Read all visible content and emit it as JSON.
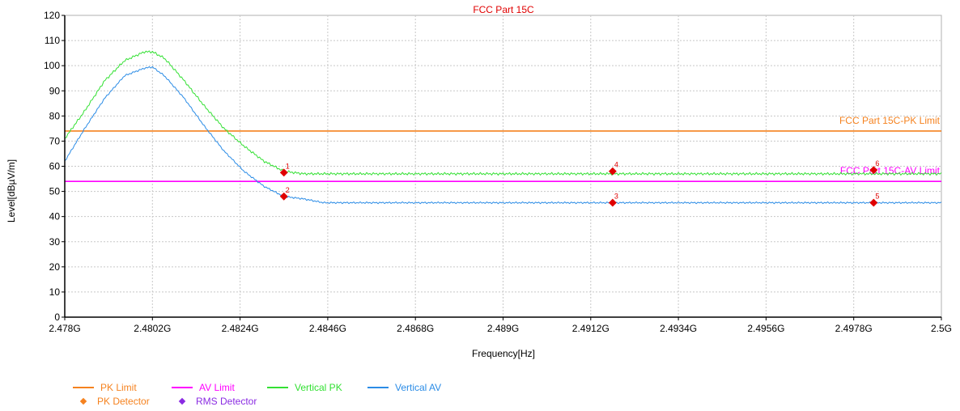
{
  "chart_data": {
    "type": "line",
    "title": "FCC Part 15C",
    "xlabel": "Frequency[Hz]",
    "ylabel": "Level[dBµV/m]",
    "xlim": [
      2.478,
      2.5
    ],
    "ylim": [
      0,
      120
    ],
    "x_ticks": [
      {
        "value": 2.478,
        "label": "2.478G"
      },
      {
        "value": 2.4802,
        "label": "2.4802G"
      },
      {
        "value": 2.4824,
        "label": "2.4824G"
      },
      {
        "value": 2.4846,
        "label": "2.4846G"
      },
      {
        "value": 2.4868,
        "label": "2.4868G"
      },
      {
        "value": 2.489,
        "label": "2.489G"
      },
      {
        "value": 2.4912,
        "label": "2.4912G"
      },
      {
        "value": 2.4934,
        "label": "2.4934G"
      },
      {
        "value": 2.4956,
        "label": "2.4956G"
      },
      {
        "value": 2.4978,
        "label": "2.4978G"
      },
      {
        "value": 2.5,
        "label": "2.5G"
      }
    ],
    "y_ticks": [
      "0",
      "10",
      "20",
      "30",
      "40",
      "50",
      "60",
      "70",
      "80",
      "90",
      "100",
      "110",
      "120"
    ],
    "grid": true,
    "limits": [
      {
        "name": "PK Limit",
        "label": "FCC Part 15C-PK Limit",
        "value": 74,
        "color": "#f5821f"
      },
      {
        "name": "AV Limit",
        "label": "FCC Part 15C-AV Limit",
        "value": 54,
        "color": "#ff00ff"
      }
    ],
    "series": [
      {
        "name": "Vertical PK",
        "color": "#33e033",
        "x": [
          2.478,
          2.4785,
          2.479,
          2.4795,
          2.48,
          2.4802,
          2.4805,
          2.481,
          2.4815,
          2.482,
          2.4825,
          2.483,
          2.4835,
          2.484,
          2.485,
          2.49,
          2.495,
          2.5
        ],
        "y": [
          71,
          82,
          94,
          102,
          105.5,
          105.5,
          103,
          94,
          84,
          75,
          68,
          62,
          58,
          57,
          57,
          57,
          57,
          57
        ]
      },
      {
        "name": "Vertical AV",
        "color": "#2b8ce6",
        "x": [
          2.478,
          2.4785,
          2.479,
          2.4795,
          2.48,
          2.4802,
          2.4805,
          2.481,
          2.4815,
          2.482,
          2.4825,
          2.483,
          2.4835,
          2.484,
          2.4845,
          2.485,
          2.49,
          2.495,
          2.5
        ],
        "y": [
          62,
          75,
          87,
          96,
          99,
          99.5,
          96,
          87,
          76,
          66,
          58,
          52,
          48,
          47,
          45.5,
          45.5,
          45.5,
          45.5,
          45.5
        ]
      }
    ],
    "markers": [
      {
        "label": "1",
        "x": 2.4835,
        "y": 57.5,
        "color": "#e00000"
      },
      {
        "label": "2",
        "x": 2.4835,
        "y": 48,
        "color": "#e00000"
      },
      {
        "label": "3",
        "x": 2.49175,
        "y": 45.5,
        "color": "#e00000"
      },
      {
        "label": "4",
        "x": 2.49175,
        "y": 58,
        "color": "#e00000"
      },
      {
        "label": "5",
        "x": 2.4983,
        "y": 45.5,
        "color": "#e00000"
      },
      {
        "label": "6",
        "x": 2.4983,
        "y": 58.5,
        "color": "#e00000"
      }
    ],
    "legend": [
      {
        "label": "PK Limit",
        "kind": "line",
        "color": "#f5821f"
      },
      {
        "label": "AV Limit",
        "kind": "line",
        "color": "#ff00ff"
      },
      {
        "label": "Vertical PK",
        "kind": "line",
        "color": "#33e033"
      },
      {
        "label": "Vertical AV",
        "kind": "line",
        "color": "#2b8ce6"
      },
      {
        "label": "PK Detector",
        "kind": "diamond",
        "color": "#f5821f"
      },
      {
        "label": "RMS Detector",
        "kind": "diamond",
        "color": "#8a2be2"
      }
    ],
    "legend_position": "bottom-left"
  }
}
